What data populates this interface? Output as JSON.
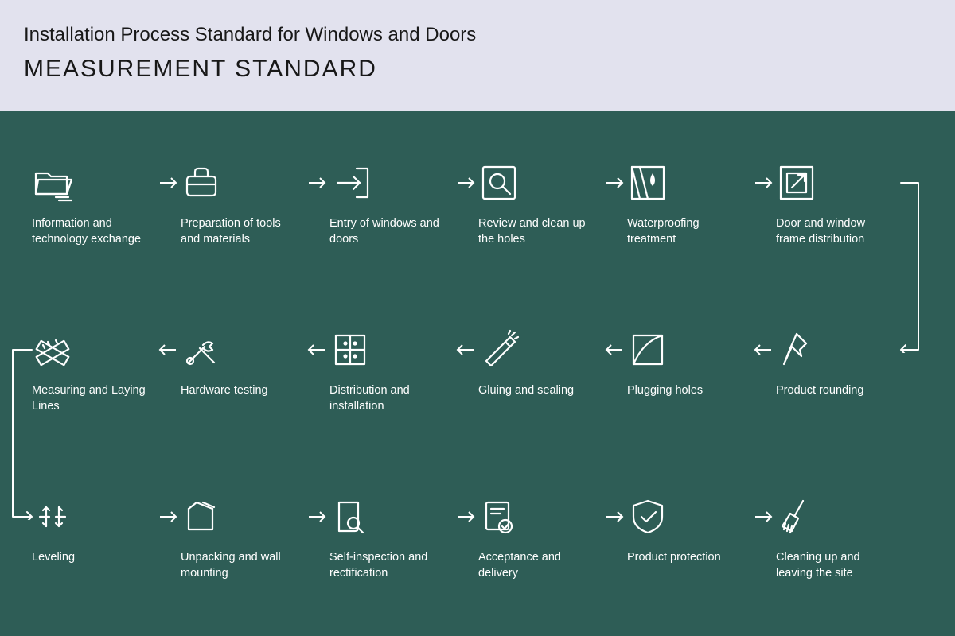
{
  "header": {
    "title": "Installation Process Standard for Windows and Doors",
    "subtitle": "MEASUREMENT STANDARD",
    "background_color": "#e2e2ee",
    "text_color": "#181818",
    "title_fontsize": 24,
    "subtitle_fontsize": 30,
    "subtitle_letter_spacing": 2
  },
  "flow": {
    "type": "flowchart",
    "background_color": "#2e5d56",
    "stroke_color": "#ffffff",
    "text_color": "#ffffff",
    "label_fontsize": 14.5,
    "icon_stroke_width": 2.2,
    "arrow_stroke_width": 2,
    "rows": [
      {
        "direction": "right",
        "steps": [
          {
            "icon": "folder-icon",
            "label": "Information and technology exchange"
          },
          {
            "icon": "briefcase-icon",
            "label": "Preparation of tools and materials"
          },
          {
            "icon": "entry-door-icon",
            "label": "Entry of windows and doors"
          },
          {
            "icon": "magnify-square-icon",
            "label": "Review and clean up the holes"
          },
          {
            "icon": "waterproof-icon",
            "label": "Waterproofing treatment"
          },
          {
            "icon": "frame-arrow-icon",
            "label": "Door and window frame distribution"
          }
        ]
      },
      {
        "direction": "left",
        "steps": [
          {
            "icon": "ruler-cross-icon",
            "label": "Measuring and Laying Lines"
          },
          {
            "icon": "tools-icon",
            "label": "Hardware testing"
          },
          {
            "icon": "cabinet-icon",
            "label": "Distribution and installation"
          },
          {
            "icon": "glue-icon",
            "label": "Gluing and sealing"
          },
          {
            "icon": "plug-square-icon",
            "label": "Plugging holes"
          },
          {
            "icon": "pin-icon",
            "label": "Product rounding"
          }
        ]
      },
      {
        "direction": "right",
        "steps": [
          {
            "icon": "leveling-icon",
            "label": "Leveling"
          },
          {
            "icon": "unpack-icon",
            "label": "Unpacking and wall mounting"
          },
          {
            "icon": "inspect-doc-icon",
            "label": "Self-inspection and rectification"
          },
          {
            "icon": "accept-doc-icon",
            "label": "Acceptance and delivery"
          },
          {
            "icon": "shield-check-icon",
            "label": "Product protection"
          },
          {
            "icon": "broom-icon",
            "label": "Cleaning up and leaving the site"
          }
        ]
      }
    ],
    "connectors": [
      {
        "from_row": 0,
        "to_row": 1,
        "side": "right"
      },
      {
        "from_row": 1,
        "to_row": 2,
        "side": "left"
      }
    ]
  }
}
